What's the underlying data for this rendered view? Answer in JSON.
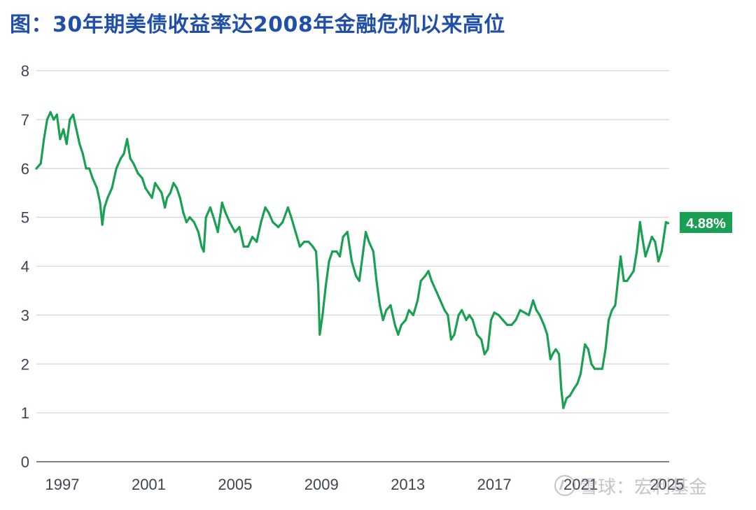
{
  "title": "图：30年期美债收益率达2008年金融危机以来高位",
  "watermark": "雪球：宏利基金",
  "colors": {
    "title": "#1f4fa8",
    "line": "#1aa052",
    "grid": "#d6d6d6",
    "label_bg": "#1aa052"
  },
  "chart_data": {
    "type": "line",
    "title": "图：30年期美债收益率达2008年金融危机以来高位",
    "xlabel": "",
    "ylabel": "",
    "xlim": [
      1995.8,
      2025.1
    ],
    "ylim": [
      0,
      8
    ],
    "y_ticks": [
      0,
      1,
      2,
      3,
      4,
      5,
      6,
      7,
      8
    ],
    "x_ticks": [
      1997,
      2001,
      2005,
      2009,
      2013,
      2017,
      2021,
      2025
    ],
    "grid": "horizontal",
    "last_value_label": "4.88%",
    "series": [
      {
        "values": [
          [
            1995.8,
            6.0
          ],
          [
            1996.0,
            6.1
          ],
          [
            1996.15,
            6.6
          ],
          [
            1996.3,
            7.0
          ],
          [
            1996.45,
            7.15
          ],
          [
            1996.6,
            7.0
          ],
          [
            1996.75,
            7.1
          ],
          [
            1996.9,
            6.6
          ],
          [
            1997.05,
            6.8
          ],
          [
            1997.2,
            6.5
          ],
          [
            1997.35,
            7.0
          ],
          [
            1997.5,
            7.1
          ],
          [
            1997.65,
            6.8
          ],
          [
            1997.8,
            6.5
          ],
          [
            1997.95,
            6.3
          ],
          [
            1998.1,
            6.0
          ],
          [
            1998.25,
            6.0
          ],
          [
            1998.4,
            5.8
          ],
          [
            1998.6,
            5.6
          ],
          [
            1998.75,
            5.3
          ],
          [
            1998.85,
            4.85
          ],
          [
            1998.95,
            5.2
          ],
          [
            1999.1,
            5.4
          ],
          [
            1999.3,
            5.6
          ],
          [
            1999.5,
            6.0
          ],
          [
            1999.7,
            6.2
          ],
          [
            1999.85,
            6.3
          ],
          [
            2000.0,
            6.6
          ],
          [
            2000.15,
            6.2
          ],
          [
            2000.3,
            6.1
          ],
          [
            2000.5,
            5.9
          ],
          [
            2000.7,
            5.8
          ],
          [
            2000.85,
            5.6
          ],
          [
            2001.0,
            5.5
          ],
          [
            2001.15,
            5.4
          ],
          [
            2001.3,
            5.7
          ],
          [
            2001.45,
            5.6
          ],
          [
            2001.6,
            5.5
          ],
          [
            2001.75,
            5.2
          ],
          [
            2001.85,
            5.4
          ],
          [
            2002.0,
            5.5
          ],
          [
            2002.15,
            5.7
          ],
          [
            2002.3,
            5.6
          ],
          [
            2002.45,
            5.4
          ],
          [
            2002.6,
            5.1
          ],
          [
            2002.75,
            4.9
          ],
          [
            2002.9,
            5.0
          ],
          [
            2003.1,
            4.9
          ],
          [
            2003.3,
            4.7
          ],
          [
            2003.45,
            4.4
          ],
          [
            2003.55,
            4.3
          ],
          [
            2003.65,
            5.0
          ],
          [
            2003.85,
            5.2
          ],
          [
            2004.0,
            5.0
          ],
          [
            2004.2,
            4.7
          ],
          [
            2004.4,
            5.3
          ],
          [
            2004.55,
            5.1
          ],
          [
            2004.75,
            4.9
          ],
          [
            2005.0,
            4.7
          ],
          [
            2005.2,
            4.8
          ],
          [
            2005.4,
            4.4
          ],
          [
            2005.6,
            4.4
          ],
          [
            2005.8,
            4.6
          ],
          [
            2006.0,
            4.5
          ],
          [
            2006.2,
            4.9
          ],
          [
            2006.4,
            5.2
          ],
          [
            2006.55,
            5.1
          ],
          [
            2006.75,
            4.9
          ],
          [
            2007.0,
            4.8
          ],
          [
            2007.2,
            4.9
          ],
          [
            2007.45,
            5.2
          ],
          [
            2007.6,
            5.0
          ],
          [
            2007.8,
            4.7
          ],
          [
            2008.0,
            4.4
          ],
          [
            2008.2,
            4.5
          ],
          [
            2008.4,
            4.5
          ],
          [
            2008.6,
            4.4
          ],
          [
            2008.75,
            4.3
          ],
          [
            2008.85,
            3.6
          ],
          [
            2008.92,
            2.6
          ],
          [
            2009.05,
            3.0
          ],
          [
            2009.2,
            3.6
          ],
          [
            2009.35,
            4.1
          ],
          [
            2009.5,
            4.3
          ],
          [
            2009.7,
            4.3
          ],
          [
            2009.85,
            4.2
          ],
          [
            2010.0,
            4.6
          ],
          [
            2010.2,
            4.7
          ],
          [
            2010.4,
            4.1
          ],
          [
            2010.6,
            3.8
          ],
          [
            2010.75,
            3.7
          ],
          [
            2010.9,
            4.2
          ],
          [
            2011.05,
            4.7
          ],
          [
            2011.2,
            4.5
          ],
          [
            2011.4,
            4.3
          ],
          [
            2011.55,
            3.7
          ],
          [
            2011.7,
            3.2
          ],
          [
            2011.85,
            2.9
          ],
          [
            2012.0,
            3.1
          ],
          [
            2012.2,
            3.2
          ],
          [
            2012.4,
            2.8
          ],
          [
            2012.55,
            2.6
          ],
          [
            2012.7,
            2.8
          ],
          [
            2012.9,
            2.9
          ],
          [
            2013.05,
            3.1
          ],
          [
            2013.25,
            3.0
          ],
          [
            2013.45,
            3.3
          ],
          [
            2013.6,
            3.7
          ],
          [
            2013.8,
            3.8
          ],
          [
            2013.95,
            3.9
          ],
          [
            2014.1,
            3.7
          ],
          [
            2014.3,
            3.5
          ],
          [
            2014.5,
            3.3
          ],
          [
            2014.7,
            3.1
          ],
          [
            2014.85,
            3.0
          ],
          [
            2015.0,
            2.5
          ],
          [
            2015.15,
            2.6
          ],
          [
            2015.35,
            3.0
          ],
          [
            2015.5,
            3.1
          ],
          [
            2015.7,
            2.9
          ],
          [
            2015.85,
            3.0
          ],
          [
            2016.0,
            2.9
          ],
          [
            2016.2,
            2.6
          ],
          [
            2016.4,
            2.5
          ],
          [
            2016.55,
            2.2
          ],
          [
            2016.7,
            2.3
          ],
          [
            2016.85,
            2.9
          ],
          [
            2017.0,
            3.05
          ],
          [
            2017.2,
            3.0
          ],
          [
            2017.4,
            2.9
          ],
          [
            2017.6,
            2.8
          ],
          [
            2017.8,
            2.8
          ],
          [
            2018.0,
            2.9
          ],
          [
            2018.2,
            3.1
          ],
          [
            2018.4,
            3.05
          ],
          [
            2018.6,
            3.0
          ],
          [
            2018.8,
            3.3
          ],
          [
            2018.95,
            3.1
          ],
          [
            2019.1,
            3.0
          ],
          [
            2019.3,
            2.8
          ],
          [
            2019.45,
            2.6
          ],
          [
            2019.6,
            2.1
          ],
          [
            2019.7,
            2.2
          ],
          [
            2019.85,
            2.3
          ],
          [
            2020.0,
            2.2
          ],
          [
            2020.1,
            1.5
          ],
          [
            2020.2,
            1.1
          ],
          [
            2020.35,
            1.3
          ],
          [
            2020.5,
            1.35
          ],
          [
            2020.7,
            1.5
          ],
          [
            2020.85,
            1.6
          ],
          [
            2021.0,
            1.8
          ],
          [
            2021.2,
            2.4
          ],
          [
            2021.35,
            2.3
          ],
          [
            2021.5,
            2.0
          ],
          [
            2021.65,
            1.9
          ],
          [
            2021.8,
            1.9
          ],
          [
            2022.0,
            1.9
          ],
          [
            2022.15,
            2.3
          ],
          [
            2022.3,
            2.9
          ],
          [
            2022.45,
            3.1
          ],
          [
            2022.6,
            3.2
          ],
          [
            2022.75,
            3.8
          ],
          [
            2022.85,
            4.2
          ],
          [
            2023.0,
            3.7
          ],
          [
            2023.15,
            3.7
          ],
          [
            2023.3,
            3.8
          ],
          [
            2023.45,
            3.9
          ],
          [
            2023.6,
            4.3
          ],
          [
            2023.75,
            4.9
          ],
          [
            2023.85,
            4.6
          ],
          [
            2024.0,
            4.2
          ],
          [
            2024.15,
            4.4
          ],
          [
            2024.3,
            4.6
          ],
          [
            2024.45,
            4.5
          ],
          [
            2024.6,
            4.1
          ],
          [
            2024.75,
            4.3
          ],
          [
            2024.85,
            4.6
          ],
          [
            2024.95,
            4.9
          ],
          [
            2025.05,
            4.88
          ]
        ]
      }
    ]
  }
}
